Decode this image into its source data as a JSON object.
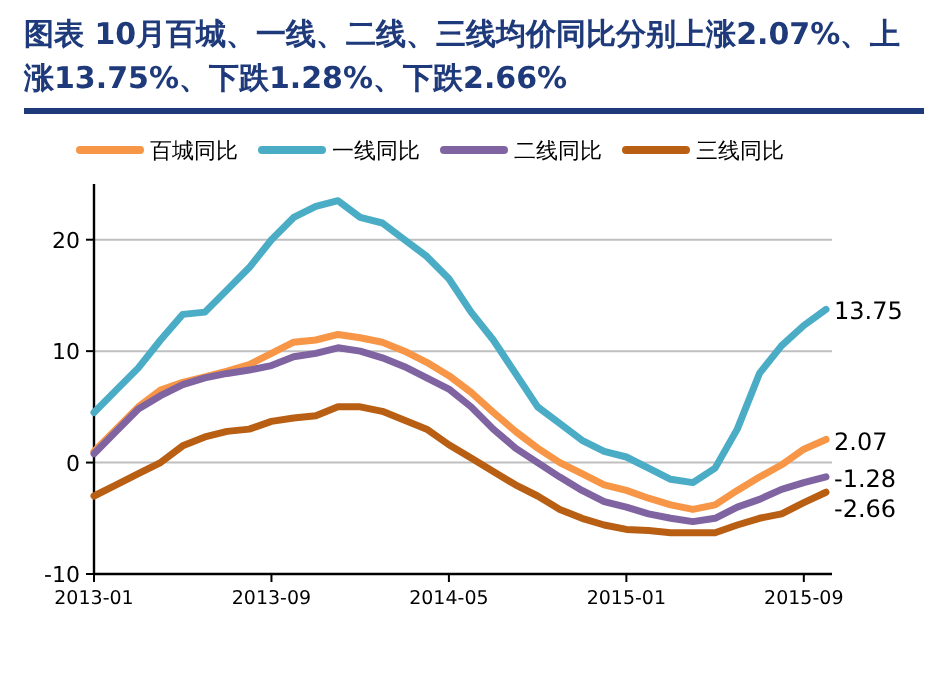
{
  "chart_data": {
    "type": "line",
    "title": "图表 10月百城、一线、二线、三线均价同比分别上涨2.07%、上涨13.75%、下跌1.28%、下跌2.66%",
    "categories": [
      "2013-01",
      null,
      null,
      null,
      null,
      null,
      null,
      null,
      "2013-09",
      null,
      null,
      null,
      null,
      null,
      null,
      null,
      "2014-05",
      null,
      null,
      null,
      null,
      null,
      null,
      null,
      "2015-01",
      null,
      null,
      null,
      null,
      null,
      null,
      null,
      "2015-09",
      null
    ],
    "series": [
      {
        "name": "百城同比",
        "color": "#f79646",
        "values": [
          1,
          3,
          5,
          6.5,
          7.2,
          7.7,
          8.2,
          8.8,
          9.8,
          10.8,
          11,
          11.5,
          11.2,
          10.8,
          10,
          9,
          7.8,
          6.3,
          4.5,
          2.8,
          1.3,
          0,
          -1,
          -2,
          -2.5,
          -3.2,
          -3.8,
          -4.2,
          -3.8,
          -2.5,
          -1.3,
          -0.2,
          1.2,
          2.07
        ],
        "value_labels": [
          null,
          null,
          null,
          null,
          null,
          null,
          null,
          null,
          null,
          null,
          null,
          null,
          null,
          null,
          null,
          null,
          null,
          null,
          null,
          null,
          null,
          null,
          null,
          null,
          null,
          null,
          null,
          null,
          null,
          null,
          null,
          null,
          null,
          "2.07"
        ]
      },
      {
        "name": "一线同比",
        "color": "#4bacc6",
        "values": [
          4.5,
          6.5,
          8.5,
          11,
          13.3,
          13.5,
          15.5,
          17.5,
          20,
          22,
          23,
          23.5,
          22,
          21.5,
          20,
          18.5,
          16.5,
          13.5,
          11,
          8,
          5,
          3.5,
          2,
          1,
          0.5,
          -0.5,
          -1.5,
          -1.8,
          -0.5,
          3,
          8,
          10.5,
          12.3,
          13.75
        ],
        "value_labels": [
          null,
          null,
          null,
          null,
          null,
          null,
          null,
          null,
          null,
          null,
          null,
          null,
          null,
          null,
          null,
          null,
          null,
          null,
          null,
          null,
          null,
          null,
          null,
          null,
          null,
          null,
          null,
          null,
          null,
          null,
          null,
          null,
          null,
          "13.75"
        ]
      },
      {
        "name": "二线同比",
        "color": "#8064a2",
        "values": [
          0.8,
          2.8,
          4.8,
          6,
          7,
          7.6,
          8,
          8.3,
          8.7,
          9.5,
          9.8,
          10.3,
          10,
          9.4,
          8.6,
          7.6,
          6.6,
          5,
          3,
          1.3,
          0,
          -1.3,
          -2.5,
          -3.5,
          -4,
          -4.6,
          -5,
          -5.3,
          -5,
          -4,
          -3.3,
          -2.4,
          -1.8,
          -1.28
        ],
        "value_labels": [
          null,
          null,
          null,
          null,
          null,
          null,
          null,
          null,
          null,
          null,
          null,
          null,
          null,
          null,
          null,
          null,
          null,
          null,
          null,
          null,
          null,
          null,
          null,
          null,
          null,
          null,
          null,
          null,
          null,
          null,
          null,
          null,
          null,
          "-1.28"
        ]
      },
      {
        "name": "三线同比",
        "color": "#b95f14",
        "values": [
          -3,
          -2,
          -1,
          0,
          1.5,
          2.3,
          2.8,
          3,
          3.7,
          4,
          4.2,
          5,
          5,
          4.6,
          3.8,
          3,
          1.6,
          0.4,
          -0.8,
          -2,
          -3,
          -4.2,
          -5,
          -5.6,
          -6,
          -6.1,
          -6.3,
          -6.3,
          -6.3,
          -5.6,
          -5,
          -4.6,
          -3.6,
          -2.66
        ],
        "value_labels": [
          null,
          null,
          null,
          null,
          null,
          null,
          null,
          null,
          null,
          null,
          null,
          null,
          null,
          null,
          null,
          null,
          null,
          null,
          null,
          null,
          null,
          null,
          null,
          null,
          null,
          null,
          null,
          null,
          null,
          null,
          null,
          null,
          null,
          "-2.66"
        ]
      }
    ],
    "ylim": [
      -10,
      25
    ],
    "yticks": [
      -10,
      0,
      10,
      20
    ],
    "grid": "y",
    "legend": "top",
    "marker": "none",
    "line_style": "solid"
  }
}
